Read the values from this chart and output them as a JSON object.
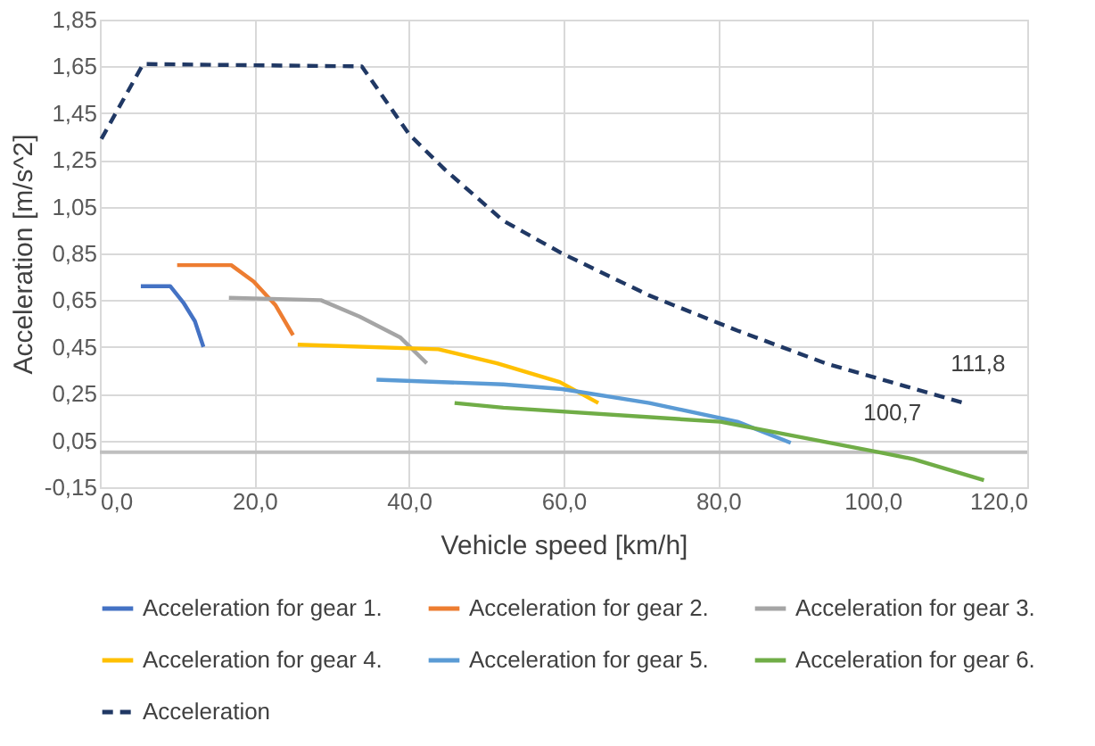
{
  "chart_data": {
    "type": "line",
    "xlabel": "Vehicle speed [km/h]",
    "ylabel": "Acceleration [m/s^2]",
    "xlim": [
      0,
      120
    ],
    "ylim": [
      -0.15,
      1.85
    ],
    "xticks": [
      {
        "value": 0,
        "label": "0,0"
      },
      {
        "value": 20,
        "label": "20,0"
      },
      {
        "value": 40,
        "label": "40,0"
      },
      {
        "value": 60,
        "label": "60,0"
      },
      {
        "value": 80,
        "label": "80,0"
      },
      {
        "value": 100,
        "label": "100,0"
      },
      {
        "value": 120,
        "label": "120,0"
      }
    ],
    "yticks": [
      {
        "value": -0.15,
        "label": "-0,15"
      },
      {
        "value": 0.05,
        "label": "0,05"
      },
      {
        "value": 0.25,
        "label": "0,25"
      },
      {
        "value": 0.45,
        "label": "0,45"
      },
      {
        "value": 0.65,
        "label": "0,65"
      },
      {
        "value": 0.85,
        "label": "0,85"
      },
      {
        "value": 1.05,
        "label": "1,05"
      },
      {
        "value": 1.25,
        "label": "1,25"
      },
      {
        "value": 1.45,
        "label": "1,45"
      },
      {
        "value": 1.65,
        "label": "1,65"
      },
      {
        "value": 1.85,
        "label": "1,85"
      }
    ],
    "grid": true,
    "legend": "bottom",
    "marker": "none",
    "line_style": "solid",
    "series": [
      {
        "name": "Acceleration for gear 1.",
        "color": "#4472c4",
        "x": [
          5.3,
          9.1,
          10.8,
          12.3,
          13.4
        ],
        "values": [
          0.71,
          0.71,
          0.64,
          0.56,
          0.45
        ]
      },
      {
        "name": "Acceleration for gear 2.",
        "color": "#ed7d31",
        "x": [
          10.0,
          17.0,
          19.9,
          22.7,
          25.0
        ],
        "values": [
          0.8,
          0.8,
          0.73,
          0.63,
          0.5
        ]
      },
      {
        "name": "Acceleration for gear 3.",
        "color": "#a5a5a5",
        "x": [
          16.7,
          28.6,
          33.6,
          38.9,
          42.3
        ],
        "values": [
          0.66,
          0.65,
          0.58,
          0.49,
          0.38
        ]
      },
      {
        "name": "Acceleration for gear 4.",
        "color": "#ffc000",
        "x": [
          25.6,
          43.8,
          51.4,
          59.5,
          64.5
        ],
        "values": [
          0.46,
          0.44,
          0.38,
          0.3,
          0.21
        ]
      },
      {
        "name": "Acceleration for gear 5.",
        "color": "#5b9bd5",
        "x": [
          35.8,
          52.2,
          59.8,
          71.1,
          82.5,
          89.4
        ],
        "values": [
          0.31,
          0.29,
          0.27,
          0.21,
          0.13,
          0.04
        ]
      },
      {
        "name": "Acceleration for gear 6.",
        "color": "#70ad47",
        "x": [
          45.9,
          52.2,
          80.3,
          100.7,
          105.3,
          114.4
        ],
        "values": [
          0.21,
          0.19,
          0.13,
          0.0,
          -0.03,
          -0.12
        ]
      },
      {
        "name": "Acceleration",
        "color": "#203864",
        "line_style": "dashed",
        "x": [
          0.2,
          5.6,
          33.9,
          40.0,
          44.6,
          52.2,
          59.8,
          71.1,
          82.5,
          93.9,
          111.8
        ],
        "values": [
          1.34,
          1.66,
          1.65,
          1.36,
          1.21,
          0.99,
          0.85,
          0.67,
          0.52,
          0.38,
          0.21
        ]
      }
    ],
    "ref_lines": [
      {
        "axis": "y",
        "value": 0,
        "color": "#bfbfbf"
      }
    ],
    "annotations": [
      {
        "text": "111,8",
        "x": 111.8,
        "y": 0.21
      },
      {
        "text": "100,7",
        "x": 100.7,
        "y": 0.0
      }
    ]
  }
}
